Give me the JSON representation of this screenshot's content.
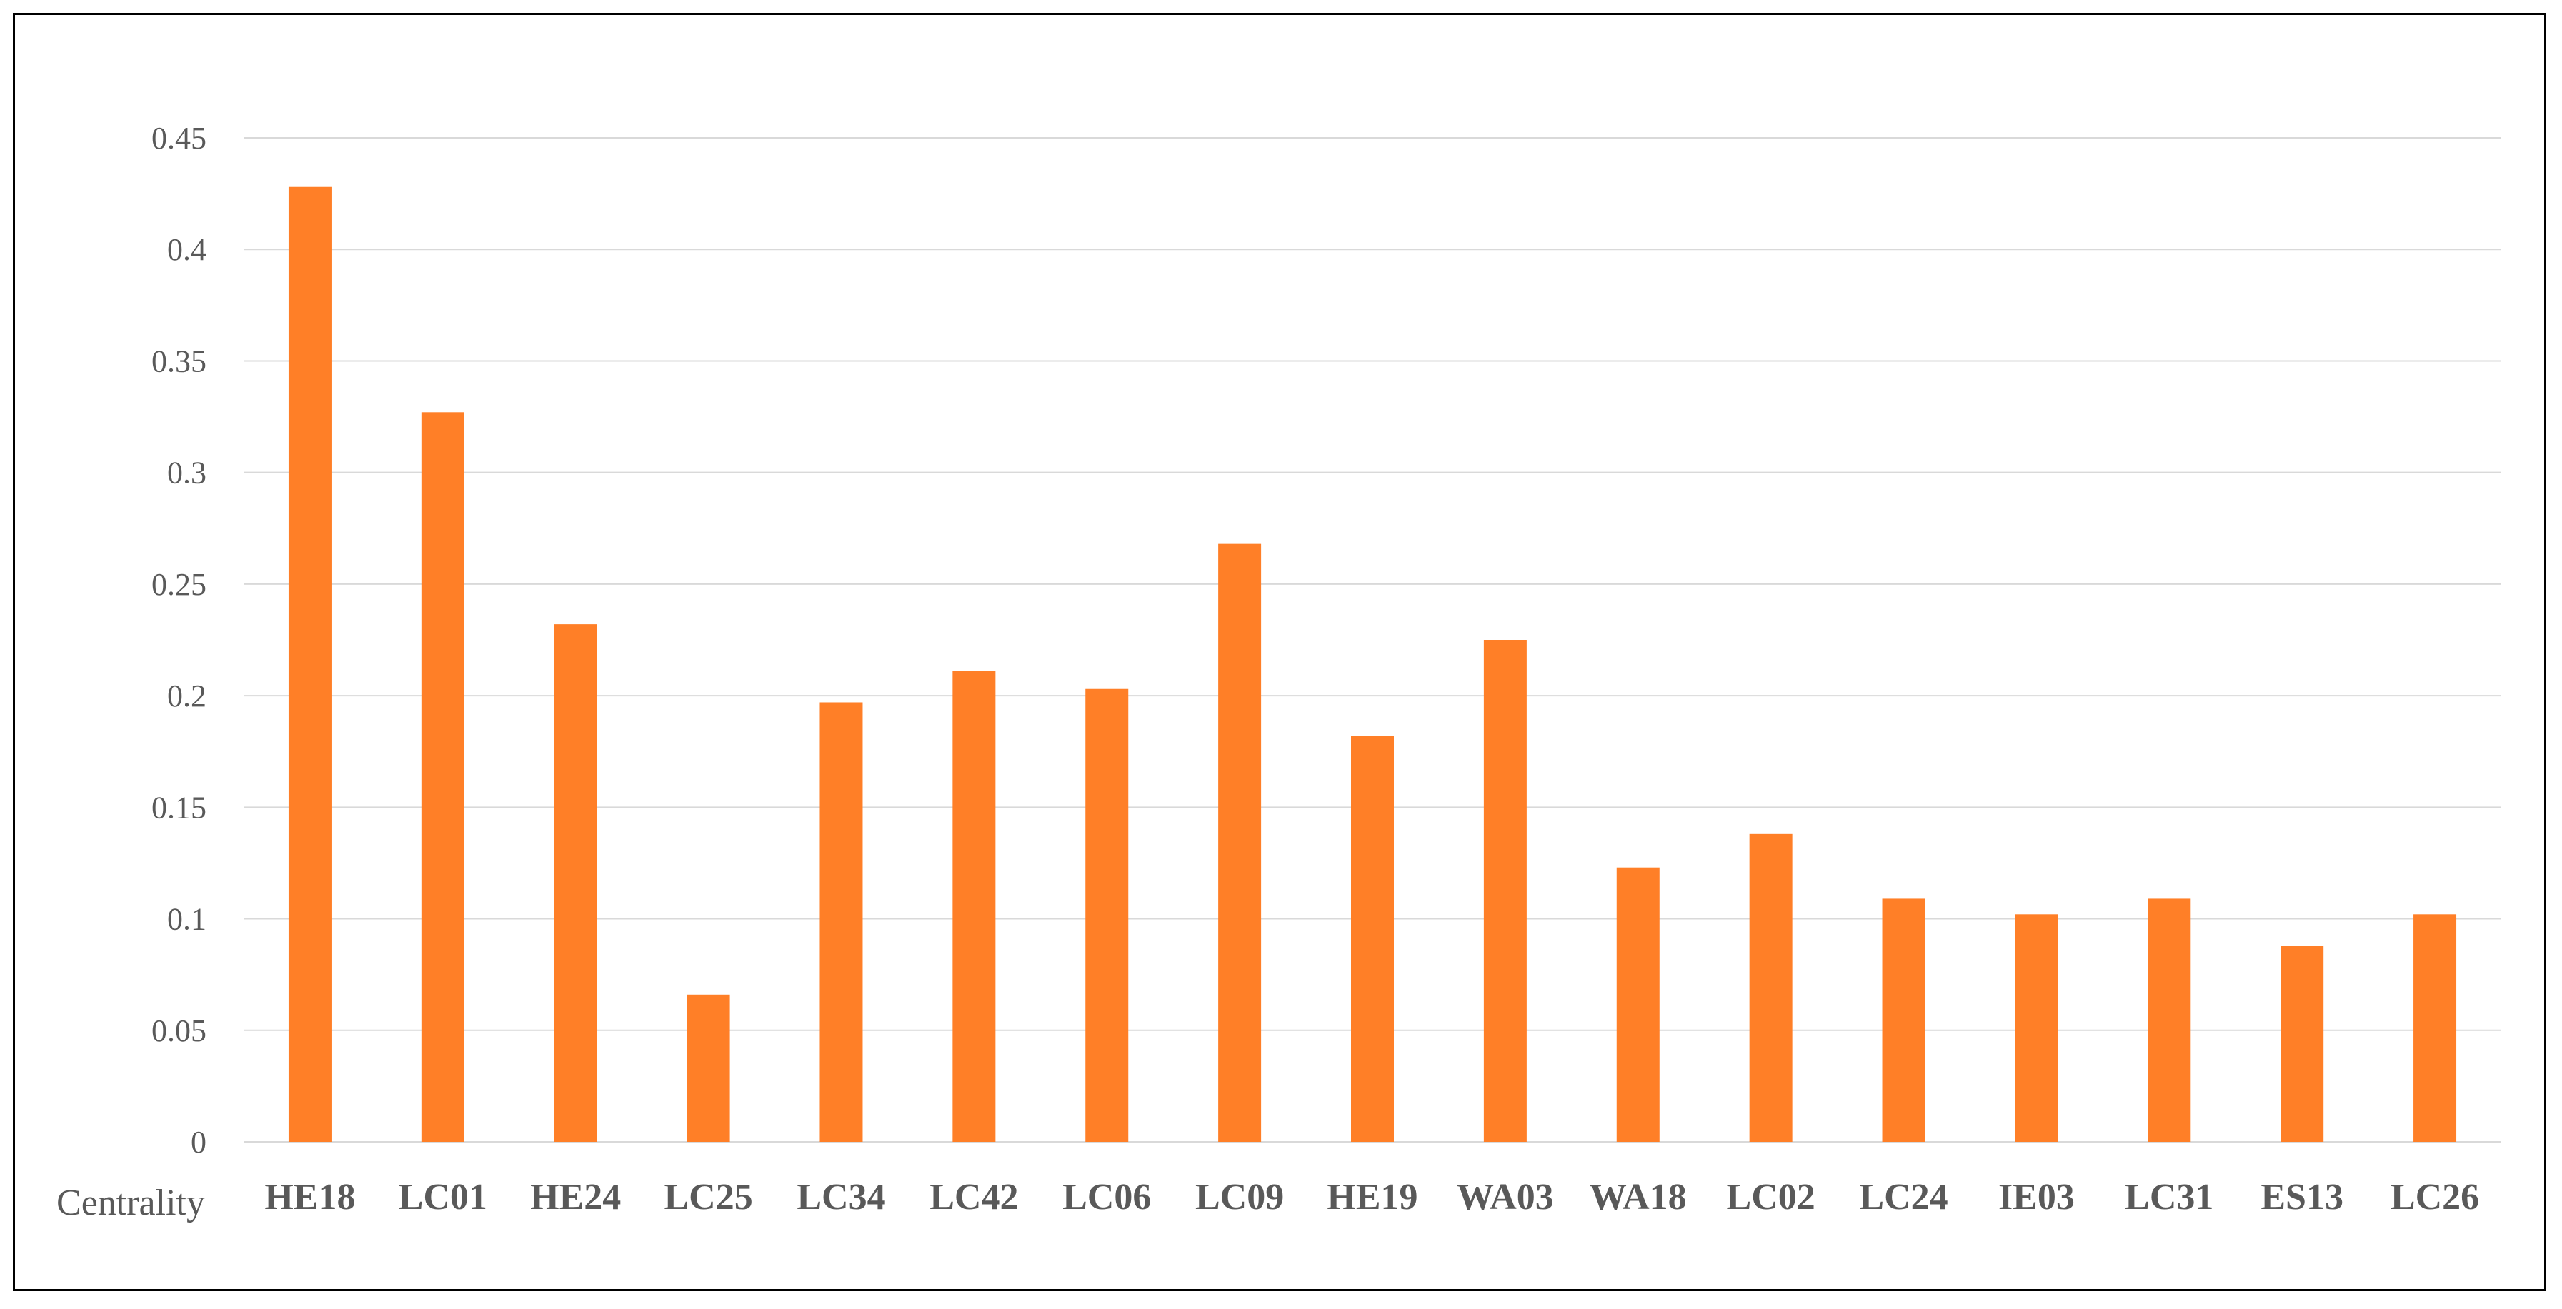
{
  "chart_data": {
    "type": "bar",
    "title": "",
    "xlabel": "Centrality",
    "ylabel": "",
    "ylim": [
      0,
      0.45
    ],
    "y_ticks": [
      "0",
      "0.05",
      "0.1",
      "0.15",
      "0.2",
      "0.25",
      "0.3",
      "0.35",
      "0.4",
      "0.45"
    ],
    "grid": true,
    "legend": "none",
    "bar_color": "#FF7F27",
    "grid_color": "#D9D9D9",
    "categories": [
      "HE18",
      "LC01",
      "HE24",
      "LC25",
      "LC34",
      "LC42",
      "LC06",
      "LC09",
      "HE19",
      "WA03",
      "WA18",
      "LC02",
      "LC24",
      "IE03",
      "LC31",
      "ES13",
      "LC26"
    ],
    "values": [
      0.428,
      0.327,
      0.232,
      0.066,
      0.197,
      0.211,
      0.203,
      0.268,
      0.182,
      0.225,
      0.123,
      0.138,
      0.109,
      0.102,
      0.109,
      0.088,
      0.102
    ]
  }
}
